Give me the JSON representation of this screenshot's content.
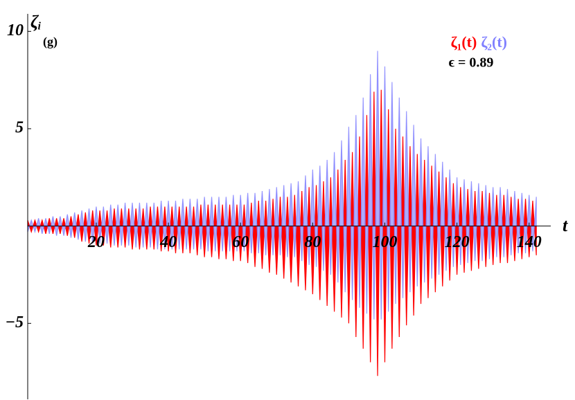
{
  "chart_data": {
    "type": "area",
    "annotations": [
      "(g)",
      "ϵ = 0.89"
    ],
    "x_label": "t",
    "y_label": "ζᵢ",
    "xlim": [
      1,
      146
    ],
    "ylim": [
      -8.9,
      10.9
    ],
    "xticks": [
      20,
      40,
      60,
      80,
      100,
      120,
      140
    ],
    "yticks": [
      {
        "value": -5,
        "label": "−5"
      },
      5,
      10
    ],
    "x": [
      1,
      2,
      3,
      4,
      5,
      6,
      7,
      8,
      9,
      10,
      11,
      12,
      13,
      14,
      15,
      16,
      17,
      18,
      19,
      20,
      21,
      22,
      23,
      24,
      25,
      26,
      27,
      28,
      29,
      30,
      31,
      32,
      33,
      34,
      35,
      36,
      37,
      38,
      39,
      40,
      41,
      42,
      43,
      44,
      45,
      46,
      47,
      48,
      49,
      50,
      51,
      52,
      53,
      54,
      55,
      56,
      57,
      58,
      59,
      60,
      61,
      62,
      63,
      64,
      65,
      66,
      67,
      68,
      69,
      70,
      71,
      72,
      73,
      74,
      75,
      76,
      77,
      78,
      79,
      80,
      81,
      82,
      83,
      84,
      85,
      86,
      87,
      88,
      89,
      90,
      91,
      92,
      93,
      94,
      95,
      96,
      97,
      98,
      99,
      100,
      101,
      102,
      103,
      104,
      105,
      106,
      107,
      108,
      109,
      110,
      111,
      112,
      113,
      114,
      115,
      116,
      117,
      118,
      119,
      120,
      121,
      122,
      123,
      124,
      125,
      126,
      127,
      128,
      129,
      130,
      131,
      132,
      133,
      134,
      135,
      136,
      137,
      138,
      139,
      140,
      141,
      142
    ],
    "series": [
      {
        "name": "ζ₁(t)",
        "color": "#ff0000",
        "values": [
          0.3,
          -0.3,
          0.3,
          -0.3,
          0.3,
          -0.4,
          0.4,
          -0.4,
          0.4,
          -0.4,
          0.4,
          -0.5,
          0.5,
          -0.6,
          0.6,
          -0.8,
          0.7,
          -0.9,
          0.8,
          -1.0,
          0.8,
          -1.0,
          0.8,
          -1.1,
          0.9,
          -1.1,
          0.9,
          -1.1,
          0.9,
          -1.2,
          0.9,
          -1.2,
          0.9,
          -1.2,
          1.0,
          -1.2,
          1.0,
          -1.3,
          1.0,
          -1.3,
          1.0,
          -1.4,
          1.0,
          -1.4,
          1.0,
          -1.4,
          1.0,
          -1.5,
          1.1,
          -1.6,
          1.1,
          -1.6,
          1.1,
          -1.7,
          1.1,
          -1.7,
          1.1,
          -1.8,
          1.1,
          -1.8,
          1.1,
          -1.9,
          1.2,
          -2.1,
          1.3,
          -2.2,
          1.3,
          -2.4,
          1.4,
          -2.5,
          1.5,
          -2.7,
          1.5,
          -2.9,
          1.6,
          -3.1,
          1.8,
          -3.3,
          2.0,
          -3.5,
          2.1,
          -3.8,
          2.3,
          -4.1,
          2.5,
          -4.4,
          2.9,
          -4.7,
          3.4,
          -5.0,
          3.8,
          -5.7,
          4.6,
          -6.3,
          5.7,
          -7.0,
          6.9,
          -7.7,
          7.0,
          -7.0,
          6.0,
          -6.3,
          5.0,
          -5.7,
          4.6,
          -5.1,
          4.1,
          -4.6,
          3.7,
          -4.0,
          3.4,
          -3.7,
          3.1,
          -3.4,
          2.8,
          -3.1,
          2.5,
          -2.8,
          2.2,
          -2.5,
          2.0,
          -2.4,
          1.9,
          -2.3,
          1.8,
          -2.2,
          1.8,
          -2.1,
          1.7,
          -2.0,
          1.6,
          -1.9,
          1.6,
          -1.9,
          1.5,
          -1.8,
          1.4,
          -1.7,
          1.4,
          -1.6,
          1.3,
          -1.5
        ]
      },
      {
        "name": "ζ₂(t)",
        "color": "#8080ff",
        "values": [
          -0.3,
          0.3,
          -0.3,
          0.4,
          -0.4,
          0.4,
          -0.4,
          0.5,
          -0.5,
          0.5,
          -0.5,
          0.6,
          -0.6,
          0.7,
          -0.7,
          0.8,
          -0.8,
          0.9,
          -0.9,
          1.0,
          -0.9,
          1.0,
          -0.9,
          1.1,
          -1.0,
          1.1,
          -1.0,
          1.2,
          -1.0,
          1.2,
          -1.1,
          1.2,
          -1.1,
          1.2,
          -1.1,
          1.2,
          -1.2,
          1.3,
          -1.2,
          1.3,
          -1.2,
          1.3,
          -1.2,
          1.4,
          -1.2,
          1.4,
          -1.2,
          1.4,
          -1.2,
          1.5,
          -1.3,
          1.5,
          -1.3,
          1.5,
          -1.3,
          1.5,
          -1.3,
          1.6,
          -1.3,
          1.6,
          -1.3,
          1.7,
          -1.4,
          1.7,
          -1.4,
          1.8,
          -1.5,
          1.9,
          -1.5,
          2.0,
          -1.5,
          2.1,
          -1.6,
          2.2,
          -1.6,
          2.3,
          -1.8,
          2.6,
          -2.0,
          2.9,
          -2.1,
          3.1,
          -2.3,
          3.4,
          -2.5,
          3.8,
          -2.9,
          4.4,
          -3.4,
          5.1,
          -3.8,
          5.7,
          -4.2,
          6.6,
          -4.5,
          7.8,
          -4.8,
          9.0,
          -4.8,
          8.2,
          -4.4,
          7.4,
          -4.0,
          6.6,
          -3.7,
          5.9,
          -3.4,
          5.2,
          -3.1,
          4.5,
          -2.9,
          4.1,
          -2.7,
          3.7,
          -2.5,
          3.3,
          -2.3,
          2.9,
          -2.1,
          2.5,
          -2.0,
          2.4,
          -1.9,
          2.3,
          -1.8,
          2.2,
          -1.8,
          2.1,
          -1.7,
          2.0,
          -1.6,
          2.0,
          -1.6,
          1.9,
          -1.5,
          1.8,
          -1.4,
          1.7,
          -1.4,
          1.6,
          -1.3,
          1.5
        ]
      }
    ]
  }
}
